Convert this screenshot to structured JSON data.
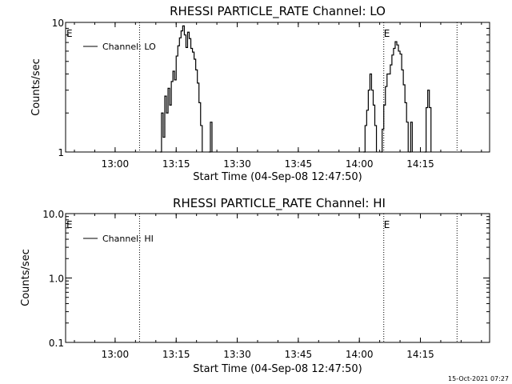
{
  "colors": {
    "background": "#ffffff",
    "foreground": "#000000"
  },
  "footer": {
    "timestamp": "15-Oct-2021 07:27"
  },
  "chart_data": [
    {
      "type": "line",
      "title": "RHESSI PARTICLE_RATE Channel: LO",
      "xlabel": "Start Time (04-Sep-08 12:47:50)",
      "ylabel": "Counts/sec",
      "yscale": "log",
      "ylim": [
        1,
        10
      ],
      "y_tick_values": [
        1,
        10
      ],
      "y_tick_labels": [
        "1",
        "10"
      ],
      "xlim": [
        "12:47:50",
        "14:32:00"
      ],
      "x_tick_values": [
        "13:00",
        "13:15",
        "13:30",
        "13:45",
        "14:00",
        "14:15"
      ],
      "x_tick_labels": [
        "13:00",
        "13:15",
        "13:30",
        "13:45",
        "14:00",
        "14:15"
      ],
      "event_lines": [
        "13:06",
        "14:06",
        "14:24"
      ],
      "event_markers": [
        {
          "time": "12:48",
          "label": "E"
        },
        {
          "time": "14:06",
          "label": "E"
        }
      ],
      "legend": {
        "label": "Channel: LO",
        "placement": "top-left"
      },
      "series": [
        {
          "name": "Channel: LO",
          "segments": [
            [
              [
                "13:11:00",
                1.0
              ],
              [
                "13:11:24",
                2.0
              ],
              [
                "13:11:48",
                1.3
              ],
              [
                "13:12:12",
                2.7
              ],
              [
                "13:12:36",
                2.0
              ],
              [
                "13:13:00",
                3.1
              ],
              [
                "13:13:24",
                2.3
              ],
              [
                "13:13:48",
                3.5
              ],
              [
                "13:14:12",
                4.2
              ],
              [
                "13:14:36",
                3.6
              ],
              [
                "13:15:00",
                5.5
              ],
              [
                "13:15:24",
                6.6
              ],
              [
                "13:15:48",
                7.6
              ],
              [
                "13:16:12",
                8.6
              ],
              [
                "13:16:36",
                9.4
              ],
              [
                "13:17:00",
                8.0
              ],
              [
                "13:17:24",
                6.4
              ],
              [
                "13:17:48",
                8.4
              ],
              [
                "13:18:12",
                7.5
              ],
              [
                "13:18:36",
                6.3
              ],
              [
                "13:19:00",
                5.9
              ],
              [
                "13:19:24",
                5.2
              ],
              [
                "13:19:48",
                4.3
              ],
              [
                "13:20:12",
                3.4
              ],
              [
                "13:20:36",
                2.4
              ],
              [
                "13:21:00",
                1.6
              ],
              [
                "13:21:24",
                1.0
              ]
            ],
            [
              [
                "13:23:00",
                1.0
              ],
              [
                "13:23:24",
                1.7
              ],
              [
                "13:23:48",
                1.0
              ]
            ],
            [
              [
                "14:01:00",
                1.0
              ],
              [
                "14:01:24",
                1.6
              ],
              [
                "14:01:48",
                2.1
              ],
              [
                "14:02:12",
                3.0
              ],
              [
                "14:02:36",
                4.0
              ],
              [
                "14:03:00",
                3.0
              ],
              [
                "14:03:24",
                2.3
              ],
              [
                "14:03:48",
                1.6
              ],
              [
                "14:04:12",
                1.0
              ]
            ],
            [
              [
                "14:05:12",
                1.0
              ],
              [
                "14:05:36",
                1.5
              ],
              [
                "14:06:00",
                2.3
              ],
              [
                "14:06:24",
                3.2
              ],
              [
                "14:06:48",
                4.0
              ],
              [
                "14:07:12",
                4.0
              ],
              [
                "14:07:36",
                4.7
              ],
              [
                "14:08:00",
                5.6
              ],
              [
                "14:08:24",
                6.3
              ],
              [
                "14:08:48",
                7.1
              ],
              [
                "14:09:12",
                6.7
              ],
              [
                "14:09:36",
                6.0
              ],
              [
                "14:10:00",
                5.7
              ],
              [
                "14:10:24",
                4.3
              ],
              [
                "14:10:48",
                3.3
              ],
              [
                "14:11:12",
                2.4
              ],
              [
                "14:11:36",
                1.7
              ],
              [
                "14:12:00",
                1.0
              ]
            ],
            [
              [
                "14:12:12",
                1.0
              ],
              [
                "14:12:36",
                1.7
              ],
              [
                "14:13:00",
                1.0
              ]
            ],
            [
              [
                "14:16:00",
                1.0
              ],
              [
                "14:16:24",
                2.2
              ],
              [
                "14:16:48",
                3.0
              ],
              [
                "14:17:12",
                2.2
              ],
              [
                "14:17:36",
                1.0
              ]
            ]
          ]
        }
      ]
    },
    {
      "type": "line",
      "title": "RHESSI PARTICLE_RATE Channel: HI",
      "xlabel": "Start Time (04-Sep-08 12:47:50)",
      "ylabel": "Counts/sec",
      "yscale": "log",
      "ylim": [
        0.1,
        10
      ],
      "y_tick_values": [
        0.1,
        1,
        10
      ],
      "y_tick_labels": [
        "0.1",
        "1.0",
        "10.0"
      ],
      "xlim": [
        "12:47:50",
        "14:32:00"
      ],
      "x_tick_values": [
        "13:00",
        "13:15",
        "13:30",
        "13:45",
        "14:00",
        "14:15"
      ],
      "x_tick_labels": [
        "13:00",
        "13:15",
        "13:30",
        "13:45",
        "14:00",
        "14:15"
      ],
      "event_lines": [
        "13:06",
        "14:06",
        "14:24"
      ],
      "event_markers": [
        {
          "time": "12:48",
          "label": "E"
        },
        {
          "time": "14:06",
          "label": "E"
        }
      ],
      "legend": {
        "label": "Channel: HI",
        "placement": "top-left"
      },
      "series": [
        {
          "name": "Channel: HI",
          "segments": []
        }
      ]
    }
  ]
}
